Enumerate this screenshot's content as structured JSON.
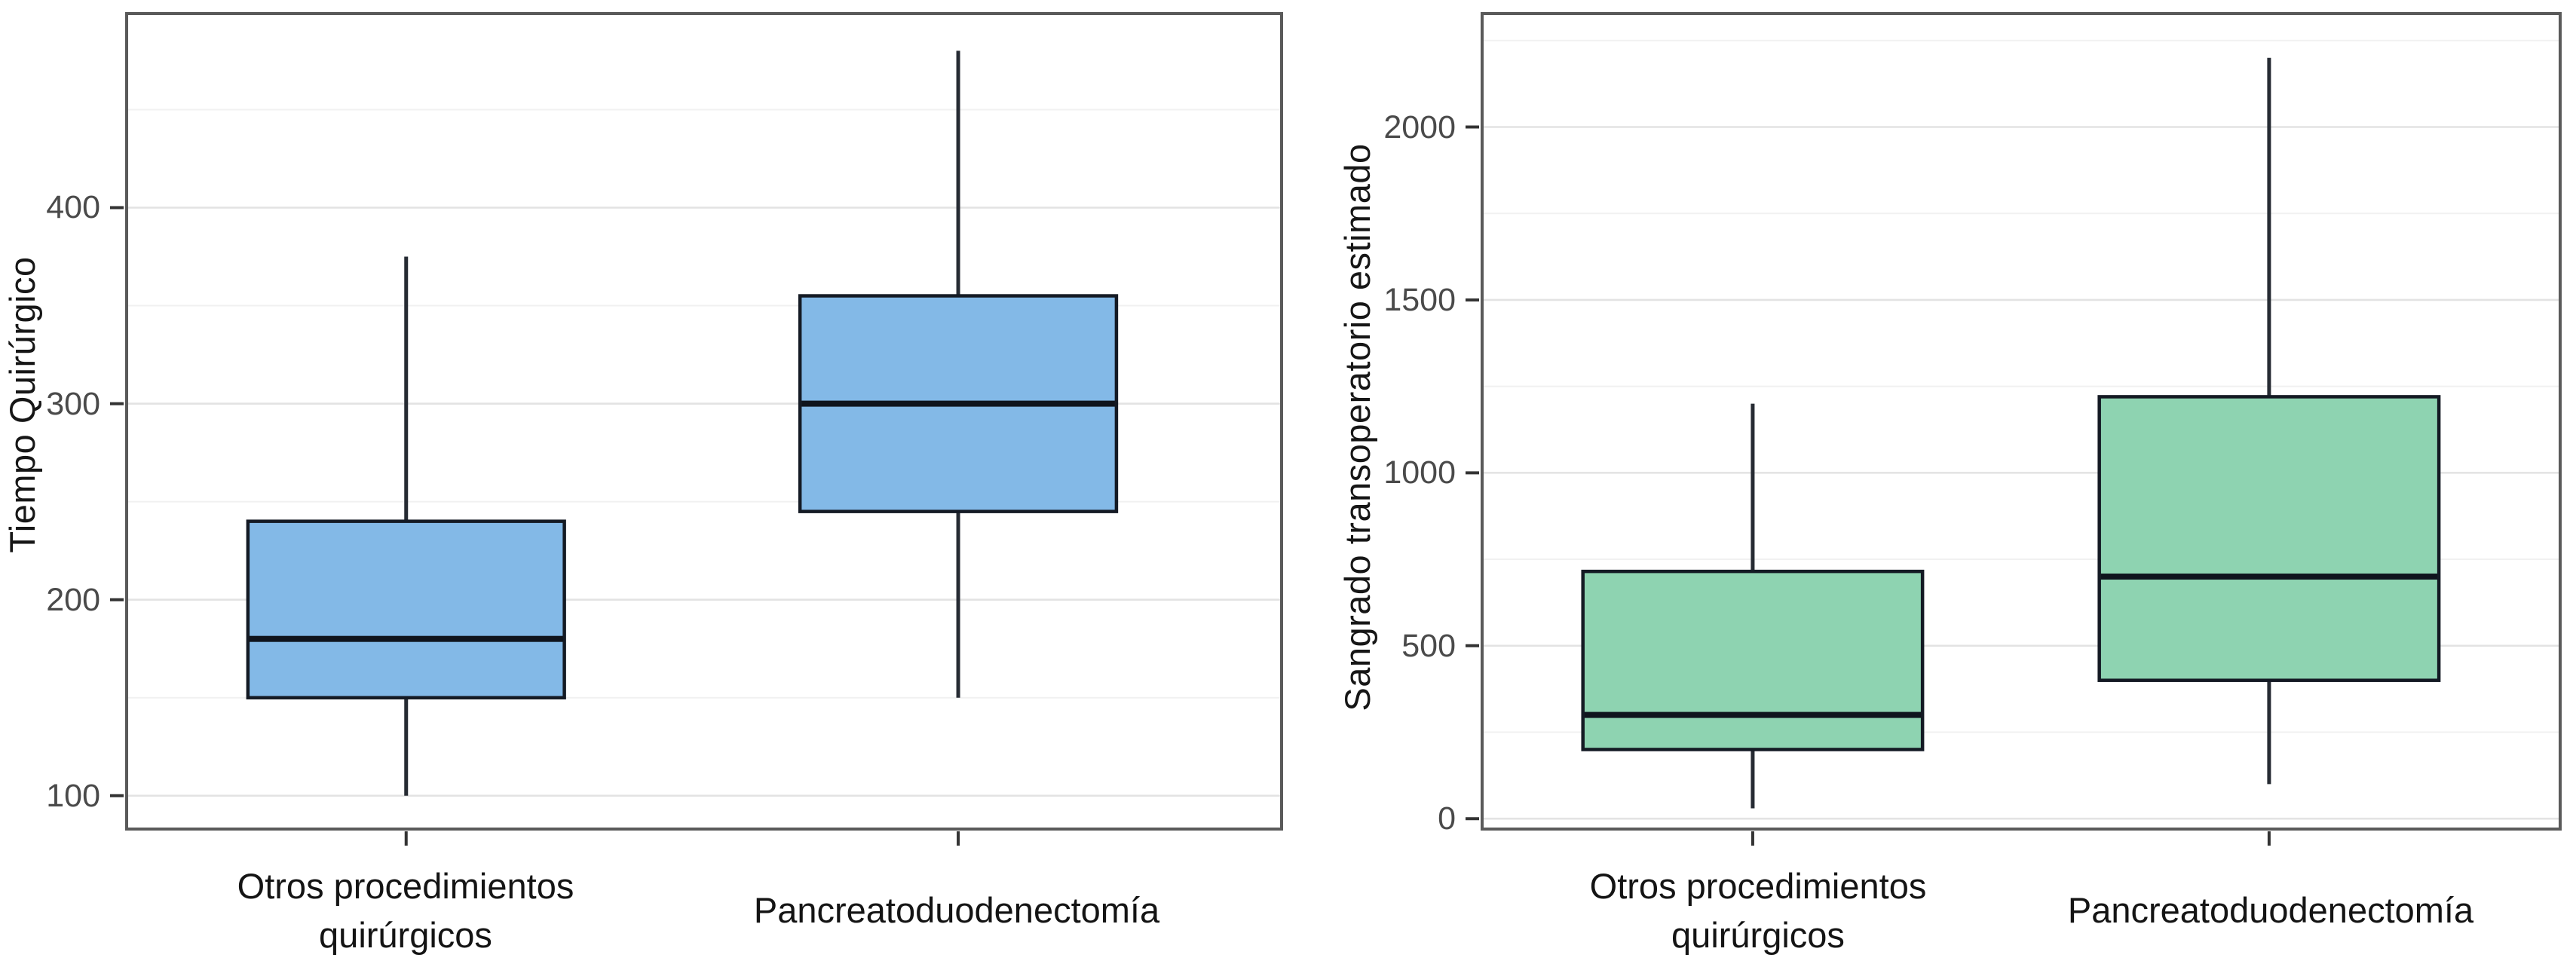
{
  "palette": {
    "background": "#ffffff",
    "panel_border": "#5a5a5a",
    "grid_major": "#e3e3e3",
    "grid_minor": "#f1f1f1",
    "box_border": "#141a24",
    "median_line": "#0f141d",
    "whisker": "#262b33",
    "tick_mark": "#333333",
    "tick_text": "#4a4a4a",
    "label_text": "#141414",
    "blue_fill": "#83b9e7",
    "green_fill": "#8ed3b1"
  },
  "chart_data": [
    {
      "type": "box",
      "panel": "A",
      "title": "",
      "xlabel": "",
      "ylabel": "Tiempo Quirúrgico",
      "categories": [
        "Otros procedimientos\nquirúrgicos",
        "Pancreatoduodenectomía"
      ],
      "yticks": [
        100,
        200,
        300,
        400
      ],
      "minor_yticks": [
        150,
        250,
        350,
        450
      ],
      "ylim": [
        83,
        499
      ],
      "grid": true,
      "legend_position": "none",
      "box_fill": "#83b9e7",
      "series": [
        {
          "category": "Otros procedimientos quirúrgicos",
          "whisker_low": 100,
          "q1": 150,
          "median": 180,
          "q3": 240,
          "whisker_high": 375
        },
        {
          "category": "Pancreatoduodenectomía",
          "whisker_low": 150,
          "q1": 245,
          "median": 300,
          "q3": 355,
          "whisker_high": 480
        }
      ]
    },
    {
      "type": "box",
      "panel": "B",
      "title": "",
      "xlabel": "",
      "ylabel": "Sangrado transoperatorio estimado",
      "categories": [
        "Otros procedimientos\nquirúrgicos",
        "Pancreatoduodenectomía"
      ],
      "yticks": [
        0,
        500,
        1000,
        1500,
        2000
      ],
      "minor_yticks": [
        250,
        750,
        1250,
        1750,
        2250
      ],
      "ylim": [
        -30,
        2328
      ],
      "grid": true,
      "legend_position": "none",
      "box_fill": "#8ed3b1",
      "series": [
        {
          "category": "Otros procedimientos quirúrgicos",
          "whisker_low": 30,
          "q1": 200,
          "median": 300,
          "q3": 715,
          "whisker_high": 1200
        },
        {
          "category": "Pancreatoduodenectomía",
          "whisker_low": 100,
          "q1": 400,
          "median": 700,
          "q3": 1220,
          "whisker_high": 2200
        }
      ]
    }
  ]
}
